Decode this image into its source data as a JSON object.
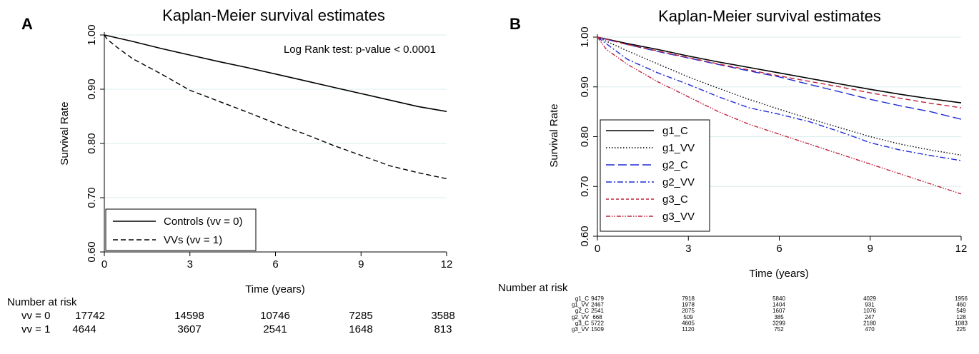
{
  "panels": [
    {
      "panel_label": "A",
      "annotation": "Log Rank test: p-value < 0.0001",
      "risk_table": {
        "heading": "Number at risk",
        "rows": [
          {
            "label": "vv = 0",
            "values": [
              "17742",
              "14598",
              "10746",
              "7285",
              "3588"
            ]
          },
          {
            "label": "vv = 1",
            "values": [
              "4644",
              "3607",
              "2541",
              "1648",
              "813"
            ]
          }
        ]
      }
    },
    {
      "panel_label": "B",
      "annotation": "",
      "risk_table": {
        "heading": "Number at risk",
        "rows": [
          {
            "label": "g1_C",
            "values": [
              "9479",
              "7918",
              "5840",
              "4029",
              "1956"
            ]
          },
          {
            "label": "g1_VV",
            "values": [
              "2467",
              "1978",
              "1404",
              "931",
              "460"
            ]
          },
          {
            "label": "g2_C",
            "values": [
              "2541",
              "2075",
              "1607",
              "1076",
              "549"
            ]
          },
          {
            "label": "g2_VV",
            "values": [
              "668",
              "509",
              "385",
              "247",
              "128"
            ]
          },
          {
            "label": "g3_C",
            "values": [
              "5722",
              "4605",
              "3299",
              "2180",
              "1083"
            ]
          },
          {
            "label": "g3_VV",
            "values": [
              "1509",
              "1120",
              "752",
              "470",
              "225"
            ]
          }
        ]
      }
    }
  ],
  "chart_data": [
    {
      "type": "line",
      "title": "Kaplan-Meier survival estimates",
      "xlabel": "Time (years)",
      "ylabel": "Survival Rate",
      "xlim": [
        0,
        12
      ],
      "ylim": [
        0.6,
        1.0
      ],
      "xticks": [
        0,
        3,
        6,
        9,
        12
      ],
      "yticks": [
        0.6,
        0.7,
        0.8,
        0.9,
        1.0
      ],
      "ytick_labels": [
        "0.60",
        "0.70",
        "0.80",
        "0.90",
        "1.00"
      ],
      "grid": "horizontal",
      "legend": "bottom-left",
      "series": [
        {
          "name": "Controls (vv = 0)",
          "style": "solid",
          "color": "#000000",
          "x": [
            0,
            1,
            2,
            3,
            4,
            5,
            6,
            7,
            8,
            9,
            10,
            11,
            12
          ],
          "y": [
            1.0,
            0.988,
            0.975,
            0.963,
            0.951,
            0.94,
            0.928,
            0.916,
            0.904,
            0.892,
            0.88,
            0.868,
            0.859
          ]
        },
        {
          "name": "VVs (vv = 1)",
          "style": "dashed",
          "color": "#000000",
          "x": [
            0,
            0.1,
            0.5,
            1,
            2,
            3,
            4,
            5,
            6,
            7,
            8,
            9,
            10,
            11,
            12
          ],
          "y": [
            1.0,
            0.992,
            0.975,
            0.956,
            0.928,
            0.898,
            0.878,
            0.858,
            0.837,
            0.818,
            0.797,
            0.778,
            0.759,
            0.746,
            0.735
          ]
        }
      ]
    },
    {
      "type": "line",
      "title": "Kaplan-Meier survival estimates",
      "xlabel": "Time (years)",
      "ylabel": "Survival Rate",
      "xlim": [
        0,
        12
      ],
      "ylim": [
        0.6,
        1.0
      ],
      "xticks": [
        0,
        3,
        6,
        9,
        12
      ],
      "yticks": [
        0.6,
        0.7,
        0.8,
        0.9,
        1.0
      ],
      "ytick_labels": [
        "0.60",
        "0.70",
        "0.80",
        "0.90",
        "1.00"
      ],
      "grid": "horizontal",
      "legend": "bottom-left",
      "series": [
        {
          "name": "g1_C",
          "style": "solid",
          "color": "#000000",
          "x": [
            0,
            1,
            2,
            3,
            4,
            5,
            6,
            7,
            8,
            9,
            10,
            11,
            12
          ],
          "y": [
            1.0,
            0.987,
            0.975,
            0.962,
            0.95,
            0.939,
            0.928,
            0.917,
            0.906,
            0.895,
            0.885,
            0.876,
            0.868
          ]
        },
        {
          "name": "g1_VV",
          "style": "dotted",
          "color": "#000000",
          "x": [
            0,
            1,
            2,
            3,
            4,
            5,
            6,
            7,
            8,
            9,
            10,
            11,
            12
          ],
          "y": [
            1.0,
            0.972,
            0.946,
            0.92,
            0.897,
            0.875,
            0.855,
            0.836,
            0.818,
            0.8,
            0.785,
            0.773,
            0.763
          ]
        },
        {
          "name": "g2_C",
          "style": "longdash",
          "color": "#1f2bd4",
          "x": [
            0,
            1,
            2,
            3,
            4,
            5,
            6,
            7,
            8,
            9,
            10,
            11,
            12
          ],
          "y": [
            1.0,
            0.985,
            0.971,
            0.958,
            0.945,
            0.932,
            0.92,
            0.905,
            0.89,
            0.875,
            0.862,
            0.85,
            0.835
          ]
        },
        {
          "name": "g2_VV",
          "style": "dashdot",
          "color": "#1f2bd4",
          "x": [
            0,
            1,
            2,
            3,
            4,
            5,
            6,
            7,
            8,
            9,
            10,
            11,
            12
          ],
          "y": [
            1.0,
            0.955,
            0.928,
            0.905,
            0.88,
            0.858,
            0.845,
            0.83,
            0.81,
            0.788,
            0.773,
            0.762,
            0.752
          ]
        },
        {
          "name": "g3_C",
          "style": "dashed",
          "color": "#c0223a",
          "x": [
            0,
            1,
            2,
            3,
            4,
            5,
            6,
            7,
            8,
            9,
            10,
            11,
            12
          ],
          "y": [
            1.0,
            0.985,
            0.972,
            0.959,
            0.946,
            0.934,
            0.922,
            0.911,
            0.9,
            0.888,
            0.877,
            0.867,
            0.858
          ]
        },
        {
          "name": "g3_VV",
          "style": "dashdotdot",
          "color": "#c0223a",
          "x": [
            0,
            0.3,
            1,
            2,
            3,
            4,
            5,
            6,
            7,
            8,
            9,
            10,
            11,
            12
          ],
          "y": [
            1.0,
            0.975,
            0.945,
            0.91,
            0.88,
            0.85,
            0.825,
            0.805,
            0.785,
            0.765,
            0.745,
            0.725,
            0.705,
            0.685
          ]
        }
      ]
    }
  ]
}
